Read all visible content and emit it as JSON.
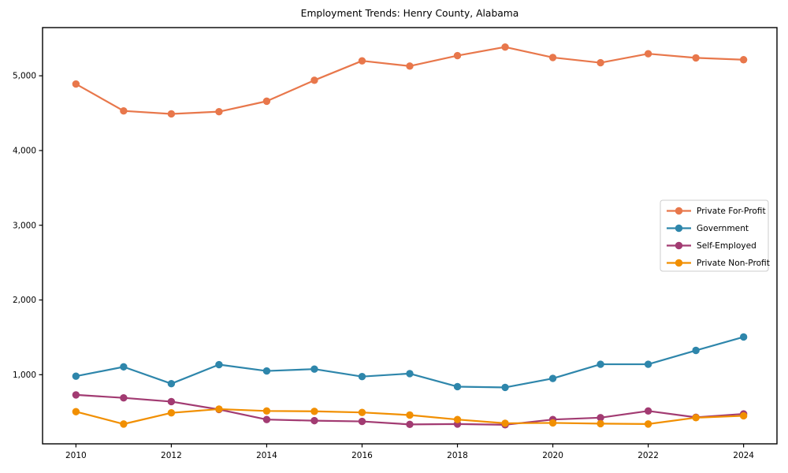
{
  "figure": {
    "title": "Employment Trends: Henry County, Alabama"
  },
  "colors": {
    "background": "#ffffff",
    "axis": "#000000",
    "tick_label": "#000000",
    "legend_border": "#cccccc",
    "legend_background": "#ffffff",
    "for_profit": "#e8774b",
    "government": "#2e86ab",
    "self_employed": "#a23b72",
    "non_profit": "#f18f01"
  },
  "chart_data": {
    "type": "line",
    "title": "Employment Trends: Henry County, Alabama",
    "xlabel": "",
    "ylabel": "",
    "grid": false,
    "legend_position": "center right",
    "x": [
      2010,
      2011,
      2012,
      2013,
      2014,
      2015,
      2016,
      2017,
      2018,
      2019,
      2020,
      2021,
      2022,
      2023,
      2024
    ],
    "xlim": [
      2009.3,
      2024.7
    ],
    "ylim": [
      75,
      5645
    ],
    "xticks": {
      "values": [
        2010,
        2012,
        2014,
        2016,
        2018,
        2020,
        2022,
        2024
      ],
      "labels": [
        "2010",
        "2012",
        "2014",
        "2016",
        "2018",
        "2020",
        "2022",
        "2024"
      ]
    },
    "yticks": {
      "values": [
        1000,
        2000,
        3000,
        4000,
        5000
      ],
      "labels": [
        "1,000",
        "2,000",
        "3,000",
        "4,000",
        "5,000"
      ]
    },
    "series": [
      {
        "name": "Private For-Profit",
        "color": "#e8774b",
        "values": [
          4890,
          4530,
          4490,
          4520,
          4660,
          4940,
          5200,
          5130,
          5270,
          5385,
          5245,
          5175,
          5295,
          5240,
          5215
        ]
      },
      {
        "name": "Government",
        "color": "#2e86ab",
        "values": [
          980,
          1105,
          880,
          1135,
          1050,
          1075,
          975,
          1015,
          840,
          830,
          950,
          1140,
          1140,
          1325,
          1505
        ]
      },
      {
        "name": "Self-Employed",
        "color": "#a23b72",
        "values": [
          730,
          690,
          640,
          535,
          400,
          385,
          375,
          335,
          340,
          330,
          400,
          425,
          515,
          430,
          475
        ]
      },
      {
        "name": "Private Non-Profit",
        "color": "#f18f01",
        "values": [
          505,
          340,
          490,
          540,
          515,
          510,
          495,
          460,
          400,
          350,
          355,
          345,
          340,
          425,
          450
        ]
      }
    ]
  }
}
